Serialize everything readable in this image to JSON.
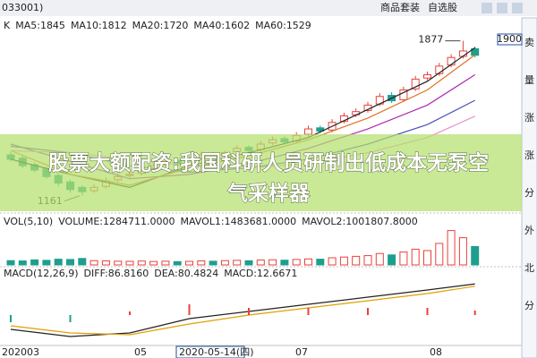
{
  "top_bar": {
    "code": "033001)",
    "links": [
      "商品套装",
      "自选股"
    ]
  },
  "side_tabs": [
    "卖",
    "量",
    "涨",
    "涨",
    "分",
    "外",
    "北",
    "分"
  ],
  "overlay": {
    "headline": [
      "股票大额配资:我国科研人员研制出低成本无泵空",
      "气采样器"
    ]
  },
  "x_axis_labels": [
    "202003",
    "05",
    "2020-05-14(四)",
    "07",
    "08"
  ],
  "chart_data": [
    {
      "type": "candlestick",
      "title": "K",
      "open": [
        1350,
        1335,
        1305,
        1285,
        1255,
        1225,
        1200,
        1185,
        1205,
        1235,
        1255,
        1265,
        1285,
        1305,
        1325,
        1315,
        1335,
        1355,
        1345,
        1365,
        1385,
        1375,
        1405,
        1425,
        1415,
        1445,
        1475,
        1465,
        1505,
        1535,
        1555,
        1585,
        1625,
        1605,
        1655,
        1705,
        1725,
        1765,
        1805,
        1840
      ],
      "high": [
        1365,
        1345,
        1315,
        1295,
        1265,
        1235,
        1210,
        1215,
        1245,
        1265,
        1275,
        1295,
        1315,
        1335,
        1335,
        1345,
        1365,
        1365,
        1370,
        1395,
        1395,
        1415,
        1435,
        1435,
        1455,
        1485,
        1485,
        1515,
        1545,
        1565,
        1595,
        1635,
        1640,
        1665,
        1715,
        1735,
        1775,
        1815,
        1877,
        1850
      ],
      "low": [
        1320,
        1290,
        1270,
        1240,
        1205,
        1175,
        1161,
        1175,
        1195,
        1225,
        1245,
        1255,
        1275,
        1295,
        1300,
        1305,
        1325,
        1330,
        1335,
        1355,
        1360,
        1365,
        1395,
        1400,
        1405,
        1435,
        1450,
        1455,
        1495,
        1525,
        1545,
        1575,
        1590,
        1595,
        1645,
        1695,
        1715,
        1755,
        1795,
        1800
      ],
      "close": [
        1330,
        1300,
        1280,
        1250,
        1220,
        1190,
        1180,
        1200,
        1230,
        1250,
        1260,
        1280,
        1300,
        1320,
        1310,
        1330,
        1350,
        1340,
        1360,
        1380,
        1370,
        1400,
        1420,
        1410,
        1440,
        1470,
        1460,
        1500,
        1530,
        1550,
        1580,
        1620,
        1600,
        1650,
        1700,
        1720,
        1760,
        1800,
        1830,
        1810
      ],
      "up_color": "#e8413c",
      "down_color": "#1e9e8e",
      "ylim": [
        1090,
        1900
      ],
      "yticks": [
        1900
      ],
      "line_x": [
        0,
        5,
        10,
        15,
        20,
        25,
        30,
        35,
        39
      ],
      "series": [
        {
          "name": "MA5:1845",
          "color": "#222222",
          "values": [
            1330,
            1260,
            1200,
            1300,
            1360,
            1430,
            1560,
            1690,
            1845
          ]
        },
        {
          "name": "MA10:1812",
          "color": "#e07020",
          "values": [
            1370,
            1260,
            1210,
            1290,
            1345,
            1420,
            1520,
            1650,
            1812
          ]
        },
        {
          "name": "MA20:1720",
          "color": "#b02ab0",
          "values": [
            1400,
            1320,
            1240,
            1260,
            1310,
            1380,
            1470,
            1580,
            1720
          ]
        },
        {
          "name": "MA40:1602",
          "color": "#4a50b8",
          "values": [
            1390,
            1360,
            1300,
            1270,
            1290,
            1330,
            1400,
            1490,
            1602
          ]
        },
        {
          "name": "MA60:1529",
          "color": "#e890c8",
          "values": [
            1370,
            1360,
            1330,
            1300,
            1290,
            1310,
            1360,
            1430,
            1529
          ]
        }
      ]
    },
    {
      "type": "bar",
      "title": "VOL(5,10)",
      "legend": [
        {
          "name": "MAVOL1:1483681.0000",
          "color": "#e07020"
        },
        {
          "name": "MAVOL2:1001807.8000",
          "color": "#b02ab0"
        }
      ],
      "series": [
        {
          "name": "VOLUME:1284711.0000",
          "color": "#333333",
          "values": [
            300000,
            280000,
            350000,
            320000,
            400000,
            380000,
            450000,
            300000,
            280000,
            260000,
            250000,
            270000,
            240000,
            260000,
            230000,
            250000,
            280000,
            260000,
            300000,
            320000,
            290000,
            340000,
            360000,
            330000,
            380000,
            420000,
            400000,
            500000,
            550000,
            600000,
            650000,
            800000,
            700000,
            900000,
            1100000,
            1000000,
            1500000,
            2400000,
            1900000,
            1284711
          ]
        }
      ],
      "ylim": [
        0,
        2500000
      ]
    },
    {
      "type": "macd",
      "title": "MACD(12,26,9)",
      "x": [
        0,
        5,
        10,
        15,
        20,
        25,
        30,
        35,
        39
      ],
      "series": [
        {
          "name": "DIFF:86.8160",
          "color": "#222222",
          "values": [
            -40,
            -60,
            -50,
            -10,
            10,
            30,
            50,
            70,
            86.816
          ]
        },
        {
          "name": "DEA:80.4824",
          "color": "#e0a000",
          "values": [
            -30,
            -50,
            -55,
            -25,
            0,
            20,
            40,
            60,
            80.4824
          ]
        },
        {
          "name": "MACD:12.6671",
          "color": "#c03090",
          "kind": "bar",
          "values": [
            -20,
            -20,
            10,
            30,
            20,
            20,
            20,
            20,
            12.6671
          ]
        }
      ],
      "ylim": [
        -80,
        100
      ]
    }
  ]
}
